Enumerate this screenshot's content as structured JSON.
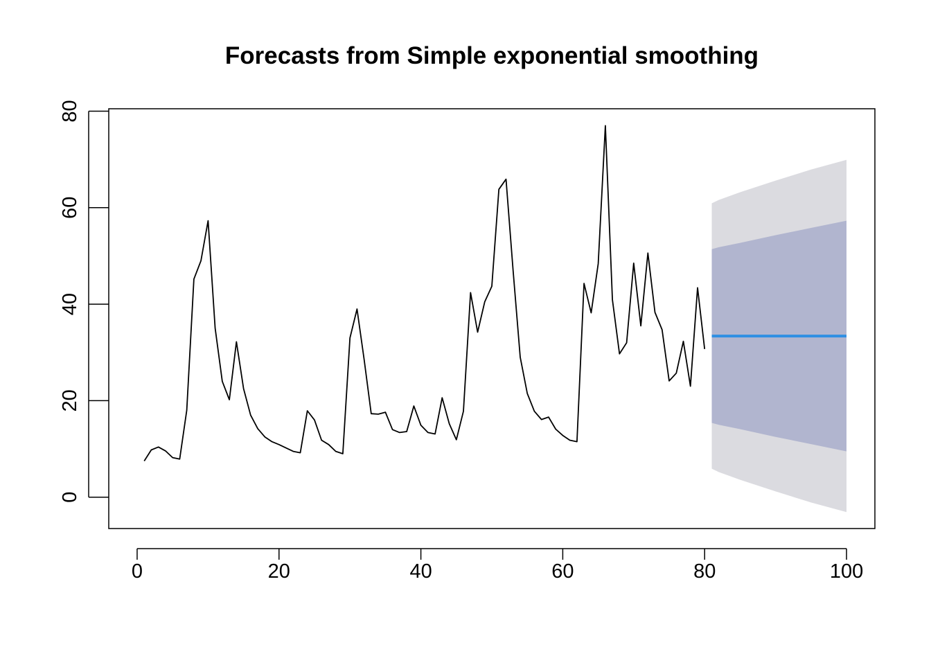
{
  "chart_data": {
    "type": "line",
    "title": "Forecasts from Simple exponential smoothing",
    "xlabel": "",
    "ylabel": "",
    "xlim": [
      -4,
      104
    ],
    "ylim": [
      -6.5,
      80.5
    ],
    "x_ticks": [
      0,
      20,
      40,
      60,
      80,
      100
    ],
    "y_ticks": [
      0,
      20,
      40,
      60,
      80
    ],
    "grid": false,
    "legend": "none",
    "colors": {
      "observed": "#000000",
      "forecast": "#2F8FE3",
      "interval_80": "#B1B5CF",
      "interval_95": "#DBDBE0"
    },
    "observed": {
      "x": [
        1,
        2,
        3,
        4,
        5,
        6,
        7,
        8,
        9,
        10,
        11,
        12,
        13,
        14,
        15,
        16,
        17,
        18,
        19,
        20,
        21,
        22,
        23,
        24,
        25,
        26,
        27,
        28,
        29,
        30,
        31,
        32,
        33,
        34,
        35,
        36,
        37,
        38,
        39,
        40,
        41,
        42,
        43,
        44,
        45,
        46,
        47,
        48,
        49,
        50,
        51,
        52,
        53,
        54,
        55,
        56,
        57,
        58,
        59,
        60,
        61,
        62,
        63,
        64,
        65,
        66,
        67,
        68,
        69,
        70,
        71,
        72,
        73,
        74,
        75,
        76,
        77,
        78,
        79,
        80
      ],
      "y": [
        7.5,
        9.8,
        10.4,
        9.6,
        8.2,
        7.9,
        18,
        45.2,
        49,
        57.3,
        35,
        24,
        20.2,
        32.2,
        22.5,
        17,
        14.2,
        12.5,
        11.5,
        10.9,
        10.2,
        9.5,
        9.2,
        17.9,
        16,
        11.8,
        10.9,
        9.5,
        9,
        33,
        39,
        28.5,
        17.3,
        17.2,
        17.6,
        14,
        13.4,
        13.6,
        18.9,
        14.9,
        13.4,
        13.1,
        20.6,
        15.2,
        11.9,
        17.8,
        42.4,
        34.2,
        40.5,
        43.7,
        63.8,
        65.9,
        47,
        29,
        21.5,
        17.8,
        16.1,
        16.6,
        14.1,
        12.8,
        11.8,
        11.5,
        44.3,
        38.2,
        48.4,
        77,
        40.9,
        29.7,
        32,
        48.5,
        35.5,
        50.6,
        38.3,
        34.7,
        24.1,
        25.7,
        32.3,
        23,
        43.4,
        30.7
      ]
    },
    "forecast": {
      "x": [
        81,
        100
      ],
      "y": [
        33.4,
        33.4
      ]
    },
    "interval_80": {
      "x": [
        81,
        82,
        85,
        90,
        95,
        100
      ],
      "upper": [
        51.4,
        51.8,
        52.7,
        54.3,
        55.8,
        57.3
      ],
      "lower": [
        15.4,
        15.0,
        14.1,
        12.5,
        11.0,
        9.5
      ]
    },
    "interval_95": {
      "x": [
        81,
        82,
        85,
        90,
        95,
        100
      ],
      "upper": [
        60.9,
        61.6,
        63.2,
        65.6,
        67.9,
        69.9
      ],
      "lower": [
        5.9,
        5.2,
        3.6,
        1.2,
        -1.1,
        -3.1
      ]
    }
  }
}
